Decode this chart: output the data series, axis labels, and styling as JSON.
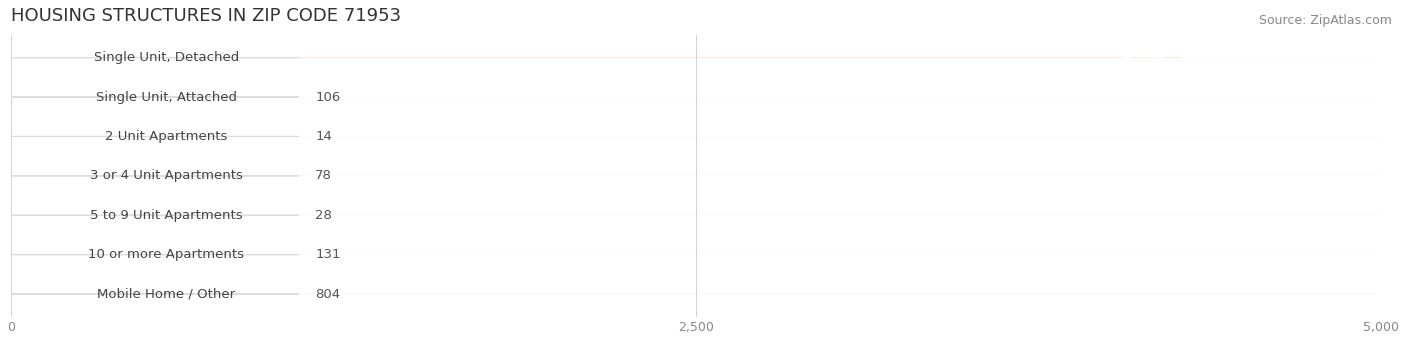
{
  "title": "HOUSING STRUCTURES IN ZIP CODE 71953",
  "source": "Source: ZipAtlas.com",
  "categories": [
    "Single Unit, Detached",
    "Single Unit, Attached",
    "2 Unit Apartments",
    "3 or 4 Unit Apartments",
    "5 to 9 Unit Apartments",
    "10 or more Apartments",
    "Mobile Home / Other"
  ],
  "values": [
    4268,
    106,
    14,
    78,
    28,
    131,
    804
  ],
  "bar_colors": [
    "#F5A850",
    "#F08888",
    "#A8BEDD",
    "#A8BEDD",
    "#A8BEDD",
    "#A8BEDD",
    "#C4A8C8"
  ],
  "row_bg_color": "#E8E8E8",
  "label_box_color": "#FFFFFF",
  "label_box_edge_color": "#DDDDDD",
  "xlim_max": 5000,
  "xticks": [
    0,
    2500,
    5000
  ],
  "xtick_labels": [
    "0",
    "2,500",
    "5,000"
  ],
  "title_fontsize": 13,
  "label_fontsize": 9.5,
  "value_fontsize": 9.5,
  "source_fontsize": 9,
  "background_color": "#FFFFFF",
  "title_color": "#333333",
  "source_color": "#888888",
  "label_color": "#444444",
  "value_color_inside": "#FFFFFF",
  "value_color_outside": "#555555"
}
